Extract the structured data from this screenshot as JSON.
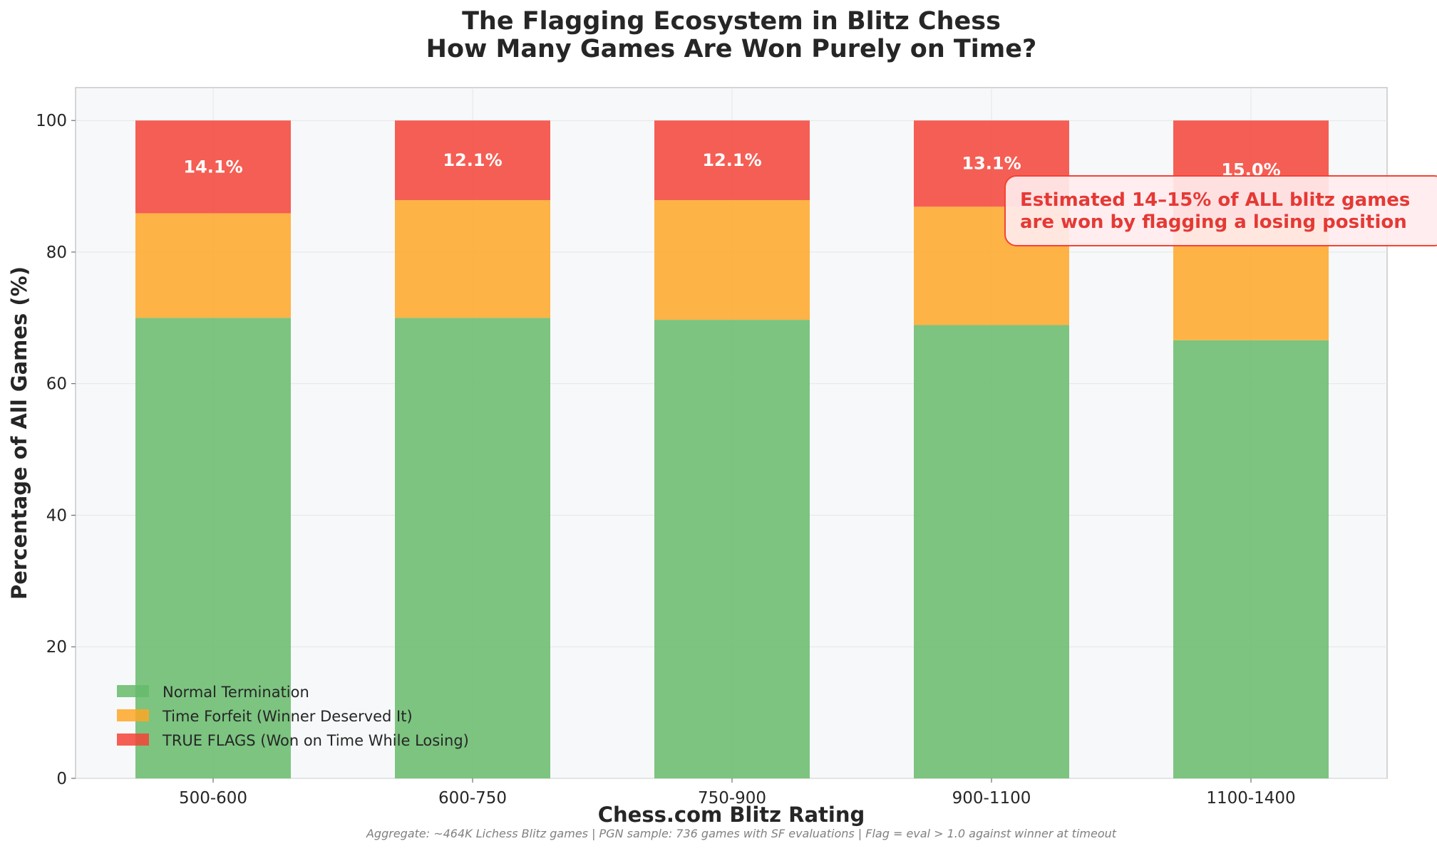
{
  "chart_data": {
    "type": "bar",
    "stacked": true,
    "title": "The Flagging Ecosystem in Blitz Chess",
    "subtitle": "How Many Games Are Won Purely on Time?",
    "xlabel": "Chess.com Blitz Rating",
    "ylabel": "Percentage of All Games (%)",
    "categories": [
      "500-600",
      "600-750",
      "750-900",
      "900-1100",
      "1100-1400"
    ],
    "series": [
      {
        "name": "Normal Termination",
        "color": "#66bb6a",
        "values": [
          70.0,
          70.0,
          69.7,
          68.9,
          66.6
        ]
      },
      {
        "name": "Time Forfeit (Winner Deserved It)",
        "color": "#ffa726",
        "values": [
          15.9,
          17.9,
          18.2,
          18.0,
          18.4
        ]
      },
      {
        "name": "TRUE FLAGS (Won on Time While Losing)",
        "color": "#f44336",
        "values": [
          14.1,
          12.1,
          12.1,
          13.1,
          15.0
        ]
      }
    ],
    "bar_labels": [
      "14.1%",
      "12.1%",
      "12.1%",
      "13.1%",
      "15.0%"
    ],
    "ylim": [
      0,
      105
    ],
    "yticks": [
      0,
      20,
      40,
      60,
      80,
      100
    ],
    "grid": true,
    "legend_position": "lower-left",
    "annotation": {
      "lines": [
        "Estimated 14–15% of ALL blitz games",
        "are won by flagging a losing position"
      ],
      "color": "#e53935"
    },
    "footnote": "Aggregate: ~464K Lichess Blitz games | PGN sample: 736 games with SF evaluations | Flag = eval > 1.0 against winner at timeout"
  }
}
